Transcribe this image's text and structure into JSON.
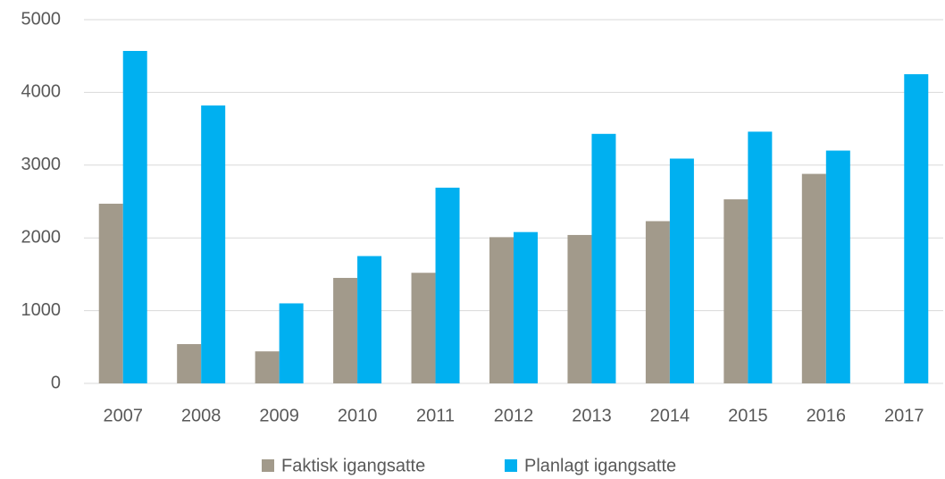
{
  "chart_data": {
    "type": "bar",
    "categories": [
      "2007",
      "2008",
      "2009",
      "2010",
      "2011",
      "2012",
      "2013",
      "2014",
      "2015",
      "2016",
      "2017"
    ],
    "series": [
      {
        "name": "Faktisk igangsatte",
        "color": "#a29a8b",
        "values": [
          2470,
          540,
          440,
          1450,
          1520,
          2010,
          2040,
          2230,
          2530,
          2880,
          null
        ]
      },
      {
        "name": "Planlagt igangsatte",
        "color": "#00b0f0",
        "values": [
          4570,
          3820,
          1100,
          1750,
          2690,
          2080,
          3430,
          3090,
          3460,
          3200,
          4250
        ]
      }
    ],
    "ylim": [
      0,
      5000
    ],
    "yticks": [
      0,
      1000,
      2000,
      3000,
      4000,
      5000
    ],
    "grid": true,
    "legend": "bottom"
  }
}
